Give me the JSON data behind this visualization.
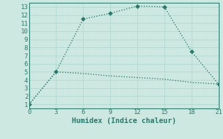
{
  "xlabel": "Humidex (Indice chaleur)",
  "line1_x": [
    0,
    3,
    6,
    9,
    12,
    15,
    18,
    21
  ],
  "line1_y": [
    1,
    5,
    11.5,
    12.2,
    13.1,
    13.0,
    7.5,
    3.5
  ],
  "line2_x": [
    0,
    3,
    6,
    9,
    12,
    15,
    18,
    21
  ],
  "line2_y": [
    1,
    5,
    4.8,
    4.5,
    4.3,
    4.1,
    3.7,
    3.5
  ],
  "line_color": "#2a7a6e",
  "bg_color": "#cce8e0",
  "grid_major_color": "#b0d8d0",
  "grid_minor_color": "#ddf0eb",
  "xlim": [
    0,
    21
  ],
  "ylim": [
    0.5,
    13.5
  ],
  "xticks": [
    0,
    3,
    6,
    9,
    12,
    15,
    18,
    21
  ],
  "yticks": [
    1,
    2,
    3,
    4,
    5,
    6,
    7,
    8,
    9,
    10,
    11,
    12,
    13
  ],
  "marker": "D",
  "markersize": 3,
  "linewidth": 1.0,
  "tick_fontsize": 6.5,
  "xlabel_fontsize": 7.5
}
